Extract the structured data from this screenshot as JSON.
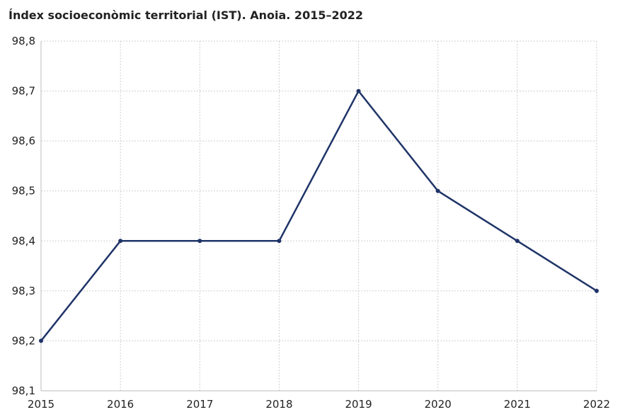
{
  "chart_data": {
    "type": "line",
    "title": "Índex socioeconòmic territorial (IST). Anoia. 2015–2022",
    "xlabel": "",
    "ylabel": "",
    "categories": [
      "2015",
      "2016",
      "2017",
      "2018",
      "2019",
      "2020",
      "2021",
      "2022"
    ],
    "series": [
      {
        "values": [
          98.2,
          98.4,
          98.4,
          98.4,
          98.7,
          98.5,
          98.4,
          98.3
        ],
        "color": "#1f3468"
      }
    ],
    "ylim": [
      98.1,
      98.8
    ],
    "yticks": [
      "98,1",
      "98,2",
      "98,3",
      "98,4",
      "98,5",
      "98,6",
      "98,7",
      "98,8"
    ],
    "grid": true,
    "grid_style": "dotted",
    "legend": "none"
  }
}
